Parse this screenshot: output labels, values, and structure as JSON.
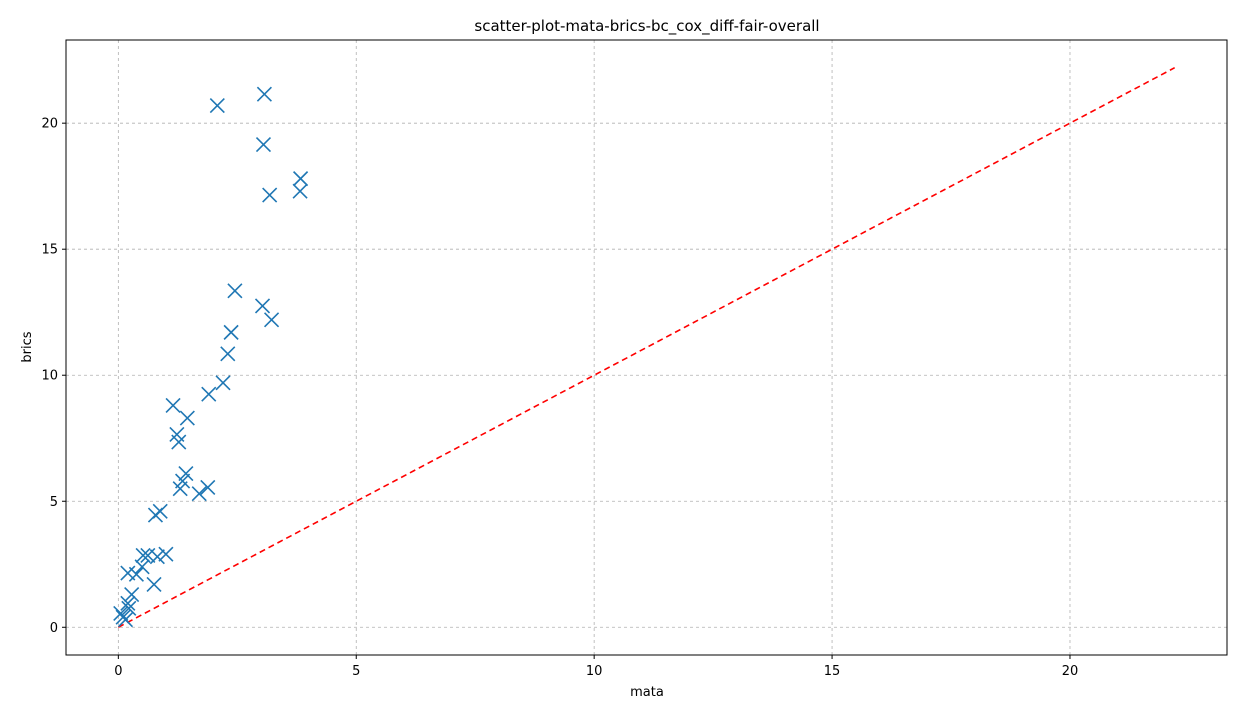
{
  "chart_data": {
    "type": "scatter",
    "title": "scatter-plot-mata-brics-bc_cox_diff-fair-overall",
    "xlabel": "mata",
    "ylabel": "brics",
    "xlim": [
      -1.1,
      23.3
    ],
    "ylim": [
      -1.1,
      23.3
    ],
    "xticks": [
      0,
      5,
      10,
      15,
      20
    ],
    "yticks": [
      0,
      5,
      10,
      15,
      20
    ],
    "grid": true,
    "legend": "none",
    "series": [
      {
        "marker": "x",
        "color": "#1f77b4",
        "points": [
          {
            "x": 2.08,
            "y": 20.7
          },
          {
            "x": 3.07,
            "y": 21.15
          },
          {
            "x": 3.05,
            "y": 19.15
          },
          {
            "x": 3.18,
            "y": 17.15
          },
          {
            "x": 3.83,
            "y": 17.8
          },
          {
            "x": 3.82,
            "y": 17.3
          },
          {
            "x": 2.45,
            "y": 13.35
          },
          {
            "x": 3.03,
            "y": 12.75
          },
          {
            "x": 3.22,
            "y": 12.2
          },
          {
            "x": 2.37,
            "y": 11.7
          },
          {
            "x": 2.3,
            "y": 10.85
          },
          {
            "x": 2.2,
            "y": 9.7
          },
          {
            "x": 1.9,
            "y": 9.25
          },
          {
            "x": 1.15,
            "y": 8.8
          },
          {
            "x": 1.45,
            "y": 8.3
          },
          {
            "x": 1.23,
            "y": 7.65
          },
          {
            "x": 1.27,
            "y": 7.35
          },
          {
            "x": 1.42,
            "y": 6.1
          },
          {
            "x": 1.35,
            "y": 5.8
          },
          {
            "x": 1.3,
            "y": 5.5
          },
          {
            "x": 1.88,
            "y": 5.55
          },
          {
            "x": 1.7,
            "y": 5.3
          },
          {
            "x": 0.88,
            "y": 4.6
          },
          {
            "x": 0.78,
            "y": 4.45
          },
          {
            "x": 1.0,
            "y": 2.9
          },
          {
            "x": 0.52,
            "y": 2.85
          },
          {
            "x": 0.62,
            "y": 2.85
          },
          {
            "x": 0.82,
            "y": 2.8
          },
          {
            "x": 0.5,
            "y": 2.4
          },
          {
            "x": 0.2,
            "y": 2.15
          },
          {
            "x": 0.38,
            "y": 2.1
          },
          {
            "x": 0.75,
            "y": 1.7
          },
          {
            "x": 0.28,
            "y": 1.3
          },
          {
            "x": 0.2,
            "y": 0.95
          },
          {
            "x": 0.22,
            "y": 0.75
          },
          {
            "x": 0.05,
            "y": 0.55
          },
          {
            "x": 0.1,
            "y": 0.4
          },
          {
            "x": 0.15,
            "y": 0.3
          }
        ]
      }
    ],
    "reference_line": {
      "style": "dashed",
      "color": "#ff0000",
      "from": [
        0,
        0
      ],
      "to": [
        22.2,
        22.2
      ]
    }
  }
}
